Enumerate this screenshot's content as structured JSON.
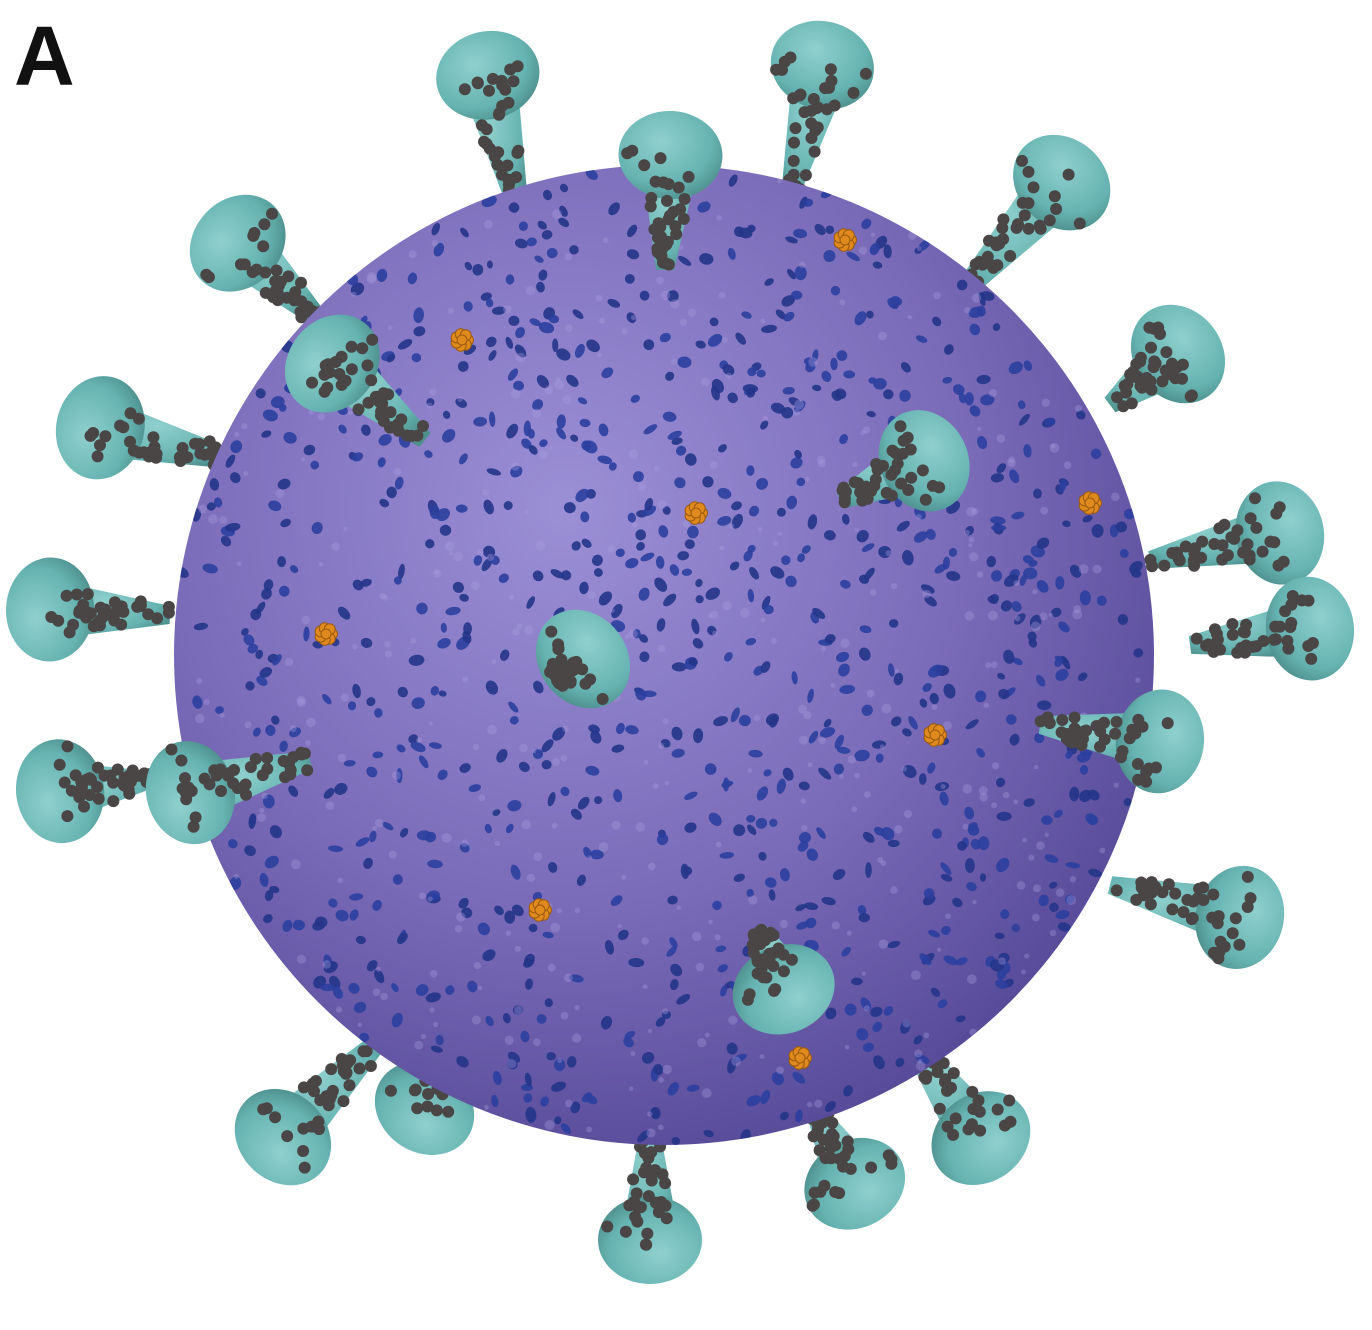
{
  "figure": {
    "panel_label": "A"
  },
  "colors": {
    "envelope": "#7a6bb8",
    "envelope_dark": "#4f4391",
    "envelope_light": "#9b8fd6",
    "membrane_protein": "#2b3f9e",
    "spike": "#66b3b1",
    "spike_dark": "#4d8f8d",
    "glycan": "#4a4646",
    "envelope_protein": "#e08a1e"
  },
  "icons": {
    "virion": "virion-icon"
  }
}
